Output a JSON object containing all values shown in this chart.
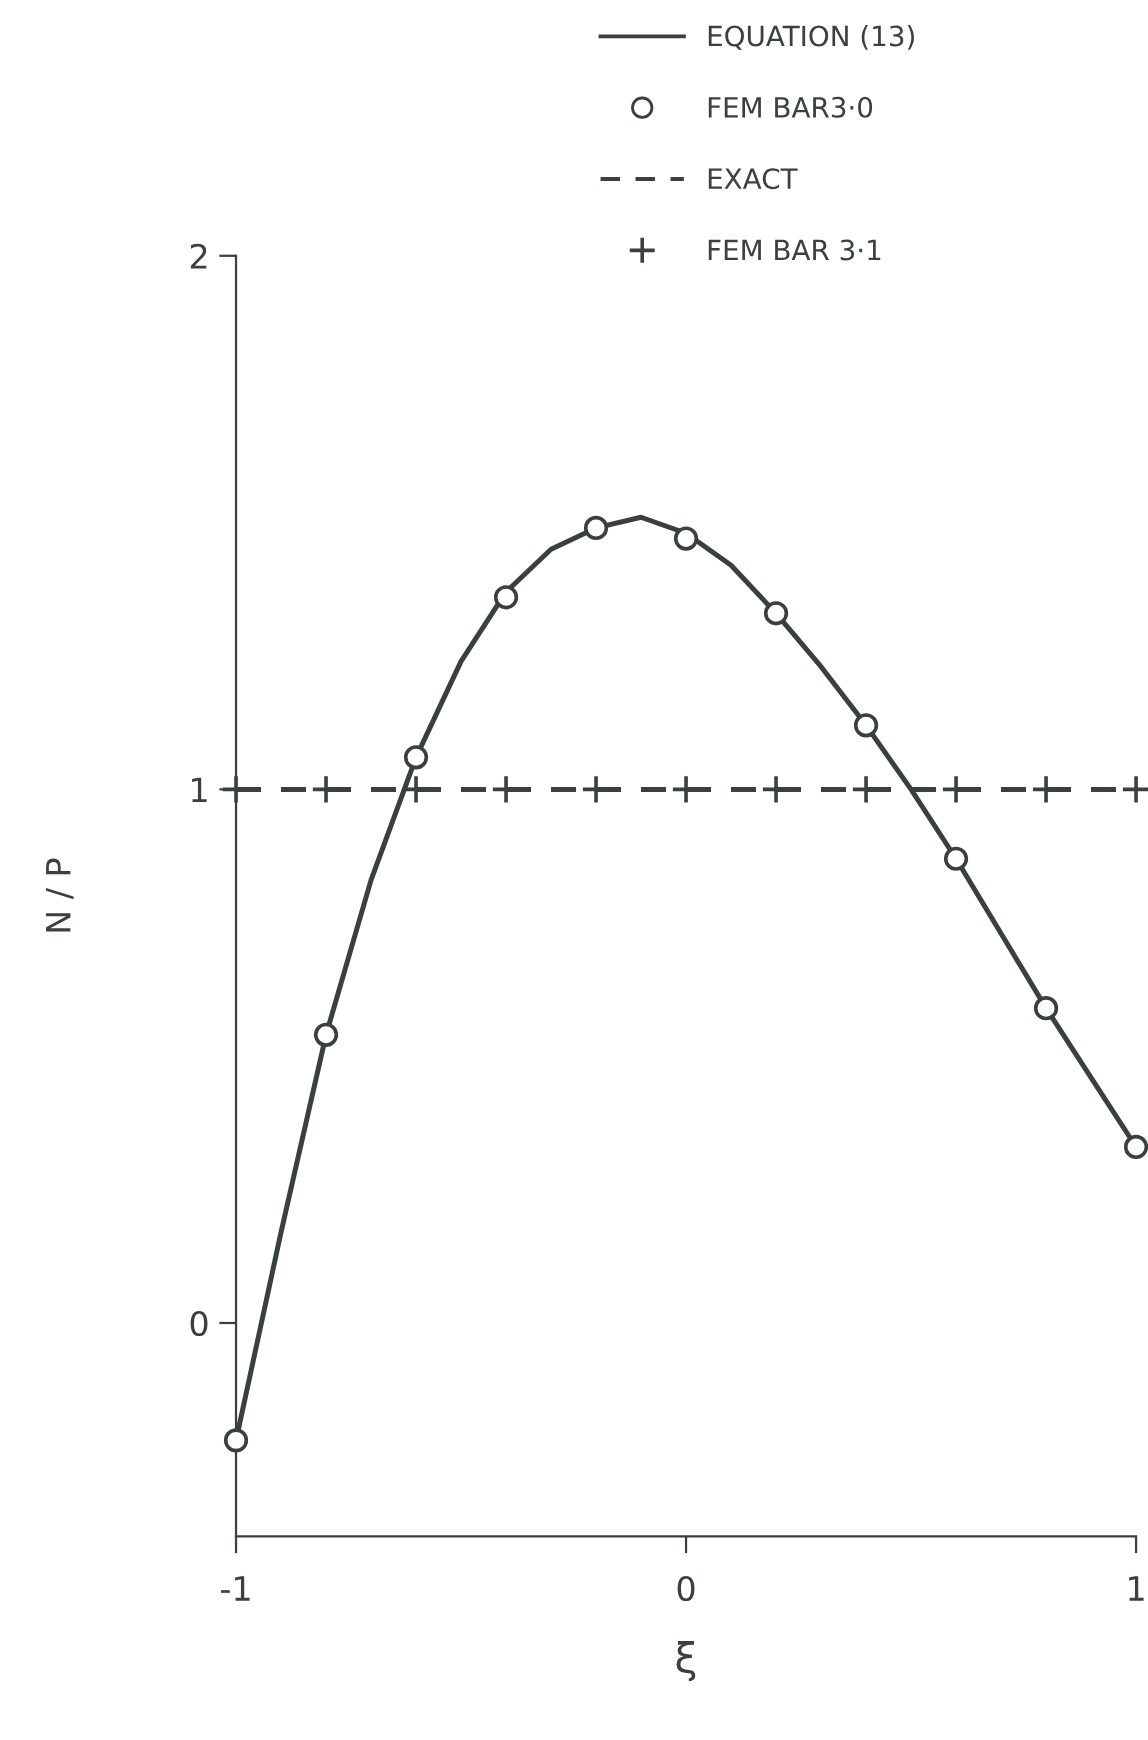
{
  "chart_data": {
    "type": "line",
    "xlabel": "ξ",
    "ylabel": "N / P",
    "xlim": [
      -1,
      1
    ],
    "ylim": [
      -0.4,
      2
    ],
    "xticks": [
      {
        "value": -1,
        "label": "-1"
      },
      0,
      1
    ],
    "yticks": [
      0,
      1,
      2
    ],
    "grid": false,
    "legend": "top right",
    "series": [
      {
        "name": "EQUATION (13)",
        "line_style": "solid",
        "marker": "none",
        "color": "#3a3f3f",
        "x": [
          -1,
          -0.9,
          -0.8,
          -0.7,
          -0.6,
          -0.5,
          -0.4,
          -0.3,
          -0.2,
          -0.1,
          0,
          0.1,
          0.2,
          0.3,
          0.4,
          0.5,
          0.6,
          0.7,
          0.8,
          0.9,
          1
        ],
        "values": [
          -0.22,
          0.17,
          0.54,
          0.83,
          1.06,
          1.24,
          1.37,
          1.45,
          1.49,
          1.51,
          1.48,
          1.42,
          1.33,
          1.23,
          1.12,
          1.0,
          0.87,
          0.73,
          0.59,
          0.46,
          0.33
        ]
      },
      {
        "name": "FEM BAR3·0",
        "type": "scatter",
        "marker": "circle",
        "color": "#3a3f3f",
        "x": [
          -1,
          -0.8,
          -0.6,
          -0.4,
          -0.2,
          0,
          0.2,
          0.4,
          0.6,
          0.8,
          1
        ],
        "values": [
          -0.22,
          0.54,
          1.06,
          1.36,
          1.49,
          1.47,
          1.33,
          1.12,
          0.87,
          0.59,
          0.33
        ]
      },
      {
        "name": "EXACT",
        "line_style": "dashed",
        "marker": "none",
        "color": "#3a3f3f",
        "x": [
          -1,
          1
        ],
        "values": [
          1,
          1
        ]
      },
      {
        "name": "FEM BAR 3·1",
        "type": "scatter",
        "marker": "cross",
        "color": "#3a3f3f",
        "x": [
          -1,
          -0.8,
          -0.6,
          -0.4,
          -0.2,
          0,
          0.2,
          0.4,
          0.6,
          0.8,
          1
        ],
        "values": [
          1,
          1,
          1,
          1,
          1,
          1,
          1,
          1,
          1,
          1,
          1
        ]
      }
    ]
  }
}
